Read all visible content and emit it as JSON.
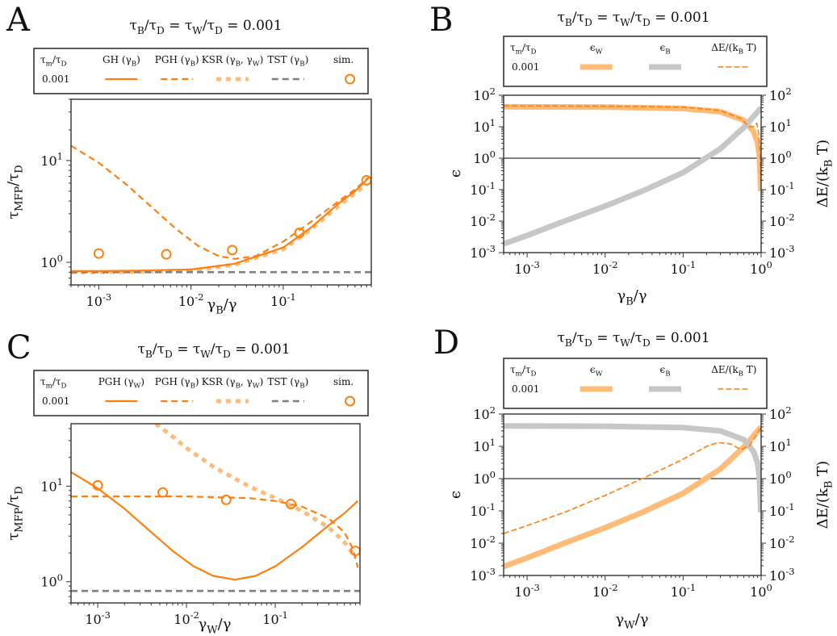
{
  "colors": {
    "orange": "#ff7f0e",
    "light_orange": "#ffbb78",
    "gray": "#7f7f7f",
    "light_gray": "#c7c7c7",
    "black": "#000000"
  },
  "panels": [
    {
      "id": "A",
      "letter": "A",
      "title": "τ_B/τ_D = τ_W/τ_D = 0.001",
      "legend_header": "τ_m/τ_D",
      "legend_value": "0.001",
      "legend_items": [
        "GH (γ_B)",
        "PGH (γ_B)",
        "KSR (γ_B, γ_W)",
        "TST (γ_B)",
        "sim."
      ],
      "xlabel": "γ_B/γ",
      "ylabel": "τ_MFP/τ_D"
    },
    {
      "id": "B",
      "letter": "B",
      "title": "τ_B/τ_D = τ_W/τ_D = 0.001",
      "legend_header": "τ_m/τ_D",
      "legend_value": "0.001",
      "legend_items": [
        "ϵ_W",
        "ϵ_B",
        "ΔE/(k_B T)"
      ],
      "xlabel": "γ_B/γ",
      "ylabel": "ϵ",
      "ylabel_right": "ΔE/(k_B T)"
    },
    {
      "id": "C",
      "letter": "C",
      "title": "τ_B/τ_D = τ_W/τ_D = 0.001",
      "legend_header": "τ_m/τ_D",
      "legend_value": "0.001",
      "legend_items": [
        "PGH (γ_W)",
        "PGH (γ_B)",
        "KSR (γ_B, γ_W)",
        "TST (γ_B)",
        "sim."
      ],
      "xlabel": "γ_W/γ",
      "ylabel": "τ_MFP/τ_D"
    },
    {
      "id": "D",
      "letter": "D",
      "title": "τ_B/τ_D = τ_W/τ_D = 0.001",
      "legend_header": "τ_m/τ_D",
      "legend_value": "0.001",
      "legend_items": [
        "ϵ_W",
        "ϵ_B",
        "ΔE/(k_B T)"
      ],
      "xlabel": "γ_W/γ",
      "ylabel": "ϵ",
      "ylabel_right": "ΔE/(k_B T)"
    }
  ],
  "chart_data": [
    {
      "panel": "A",
      "type": "line",
      "xscale": "log",
      "yscale": "log",
      "xlim": [
        0.0005,
        0.9
      ],
      "ylim": [
        0.6,
        40
      ],
      "xticks": [
        {
          "v": 0.001,
          "label": "10^-3"
        },
        {
          "v": 0.01,
          "label": "10^-2"
        },
        {
          "v": 0.1,
          "label": "10^-1"
        }
      ],
      "yticks": [
        {
          "v": 1,
          "label": "10^0"
        },
        {
          "v": 10,
          "label": "10^1"
        }
      ],
      "series": [
        {
          "name": "KSR (γ_B, γ_W)",
          "style": "ksr",
          "x": [
            0.0005,
            0.001,
            0.003,
            0.01,
            0.03,
            0.1,
            0.2,
            0.4,
            0.6,
            0.8
          ],
          "y": [
            0.8,
            0.8,
            0.81,
            0.83,
            0.95,
            1.35,
            2.1,
            3.6,
            4.8,
            5.8
          ]
        },
        {
          "name": "TST (γ_B)",
          "style": "tst",
          "x": [
            0.0005,
            0.9
          ],
          "y": [
            0.8,
            0.8
          ]
        },
        {
          "name": "GH (γ_B)",
          "style": "gh",
          "x": [
            0.0005,
            0.001,
            0.003,
            0.01,
            0.03,
            0.1,
            0.2,
            0.4,
            0.6,
            0.85
          ],
          "y": [
            0.82,
            0.82,
            0.83,
            0.85,
            0.97,
            1.4,
            2.2,
            3.8,
            5.0,
            6.8
          ]
        },
        {
          "name": "PGH (γ_B)",
          "style": "pgh",
          "x": [
            0.0005,
            0.001,
            0.002,
            0.004,
            0.007,
            0.012,
            0.02,
            0.03,
            0.05,
            0.1,
            0.2,
            0.4,
            0.6,
            0.85
          ],
          "y": [
            14,
            9.5,
            5.8,
            3.3,
            2.1,
            1.45,
            1.15,
            1.08,
            1.15,
            1.6,
            2.5,
            4.0,
            5.2,
            6.9
          ]
        },
        {
          "name": "sim.",
          "style": "sim",
          "x": [
            0.001,
            0.0054,
            0.028,
            0.15,
            0.8
          ],
          "y": [
            1.22,
            1.2,
            1.32,
            1.95,
            6.4
          ]
        }
      ]
    },
    {
      "panel": "B",
      "type": "line",
      "xscale": "log",
      "yscale": "log",
      "xlim": [
        0.0005,
        1
      ],
      "ylim": [
        0.001,
        100
      ],
      "xticks": [
        {
          "v": 0.001,
          "label": "10^-3"
        },
        {
          "v": 0.01,
          "label": "10^-2"
        },
        {
          "v": 0.1,
          "label": "10^-1"
        },
        {
          "v": 1,
          "label": "10^0"
        }
      ],
      "yticks": [
        {
          "v": 0.001,
          "label": "10^-3"
        },
        {
          "v": 0.01,
          "label": "10^-2"
        },
        {
          "v": 0.1,
          "label": "10^-1"
        },
        {
          "v": 1,
          "label": "10^0"
        },
        {
          "v": 10,
          "label": "10^1"
        },
        {
          "v": 100,
          "label": "10^2"
        }
      ],
      "hline": 1,
      "series": [
        {
          "name": "ϵ_W",
          "style": "epsW",
          "x": [
            0.0005,
            0.01,
            0.1,
            0.3,
            0.6,
            0.8,
            0.9,
            0.95,
            0.99
          ],
          "y": [
            43,
            42,
            38,
            30,
            16,
            7,
            3,
            1.2,
            0.09
          ]
        },
        {
          "name": "ϵ_B",
          "style": "epsB",
          "x": [
            0.0005,
            0.001,
            0.003,
            0.01,
            0.03,
            0.1,
            0.3,
            0.6,
            1.0
          ],
          "y": [
            0.0019,
            0.0035,
            0.01,
            0.03,
            0.09,
            0.35,
            2.0,
            9.5,
            40
          ]
        },
        {
          "name": "ΔE/(k_B T)",
          "style": "dE",
          "x": [
            0.0005,
            0.01,
            0.1,
            0.3,
            0.55,
            0.7,
            0.8,
            0.88,
            0.93,
            0.97,
            0.99
          ],
          "y": [
            46,
            45,
            42,
            33,
            18,
            10,
            10,
            13,
            6,
            1.2,
            0.2
          ]
        }
      ]
    },
    {
      "panel": "C",
      "type": "line",
      "xscale": "log",
      "yscale": "log",
      "xlim": [
        0.0005,
        0.9
      ],
      "ylim": [
        0.6,
        45
      ],
      "xticks": [
        {
          "v": 0.001,
          "label": "10^-3"
        },
        {
          "v": 0.01,
          "label": "10^-2"
        },
        {
          "v": 0.1,
          "label": "10^-1"
        }
      ],
      "yticks": [
        {
          "v": 1,
          "label": "10^0"
        },
        {
          "v": 10,
          "label": "10^1"
        }
      ],
      "series": [
        {
          "name": "KSR (γ_B, γ_W)",
          "style": "ksr",
          "x": [
            0.0045,
            0.007,
            0.01,
            0.02,
            0.05,
            0.1,
            0.2,
            0.4,
            0.6,
            0.8
          ],
          "y": [
            45,
            33,
            25,
            16,
            10,
            7.5,
            5.5,
            3.7,
            2.6,
            1.8
          ]
        },
        {
          "name": "TST (γ_B)",
          "style": "tst",
          "x": [
            0.0005,
            0.9
          ],
          "y": [
            0.8,
            0.8
          ]
        },
        {
          "name": "PGH (γ_W)",
          "style": "gh",
          "x": [
            0.0005,
            0.001,
            0.002,
            0.004,
            0.007,
            0.012,
            0.02,
            0.035,
            0.06,
            0.1,
            0.2,
            0.4,
            0.6,
            0.85
          ],
          "y": [
            14,
            9.5,
            5.8,
            3.3,
            2.1,
            1.45,
            1.15,
            1.05,
            1.15,
            1.45,
            2.3,
            3.9,
            5.2,
            7.0
          ]
        },
        {
          "name": "PGH (γ_B)",
          "style": "pgh",
          "x": [
            0.0005,
            0.001,
            0.01,
            0.05,
            0.1,
            0.2,
            0.4,
            0.6,
            0.75,
            0.85
          ],
          "y": [
            7.8,
            7.8,
            7.8,
            7.5,
            7.0,
            6.1,
            4.6,
            3.3,
            2.2,
            1.4
          ]
        },
        {
          "name": "sim.",
          "style": "sim",
          "x": [
            0.001,
            0.0054,
            0.028,
            0.15,
            0.8
          ],
          "y": [
            10.2,
            8.6,
            7.2,
            6.5,
            2.1
          ]
        }
      ]
    },
    {
      "panel": "D",
      "type": "line",
      "xscale": "log",
      "yscale": "log",
      "xlim": [
        0.0005,
        1
      ],
      "ylim": [
        0.001,
        100
      ],
      "xticks": [
        {
          "v": 0.001,
          "label": "10^-3"
        },
        {
          "v": 0.01,
          "label": "10^-2"
        },
        {
          "v": 0.1,
          "label": "10^-1"
        },
        {
          "v": 1,
          "label": "10^0"
        }
      ],
      "yticks": [
        {
          "v": 0.001,
          "label": "10^-3"
        },
        {
          "v": 0.01,
          "label": "10^-2"
        },
        {
          "v": 0.1,
          "label": "10^-1"
        },
        {
          "v": 1,
          "label": "10^0"
        },
        {
          "v": 10,
          "label": "10^1"
        },
        {
          "v": 100,
          "label": "10^2"
        }
      ],
      "hline": 1,
      "series": [
        {
          "name": "ϵ_W",
          "style": "epsW",
          "x": [
            0.0005,
            0.001,
            0.003,
            0.01,
            0.03,
            0.1,
            0.3,
            0.6,
            1.0
          ],
          "y": [
            0.0019,
            0.0035,
            0.01,
            0.03,
            0.09,
            0.35,
            2.0,
            9.5,
            40
          ]
        },
        {
          "name": "ϵ_B",
          "style": "epsB",
          "x": [
            0.0005,
            0.01,
            0.1,
            0.3,
            0.6,
            0.8,
            0.9,
            0.95,
            0.99
          ],
          "y": [
            43,
            42,
            38,
            30,
            16,
            7,
            3,
            1.2,
            0.09
          ]
        },
        {
          "name": "ΔE/(k_B T)",
          "style": "dE",
          "x": [
            0.0005,
            0.001,
            0.003,
            0.01,
            0.03,
            0.1,
            0.2,
            0.28,
            0.4,
            0.55,
            0.7,
            0.85,
            0.95,
            1.0
          ],
          "y": [
            0.02,
            0.035,
            0.09,
            0.3,
            1.0,
            4.0,
            10,
            13,
            12,
            8,
            10,
            20,
            32,
            38
          ]
        }
      ]
    }
  ]
}
